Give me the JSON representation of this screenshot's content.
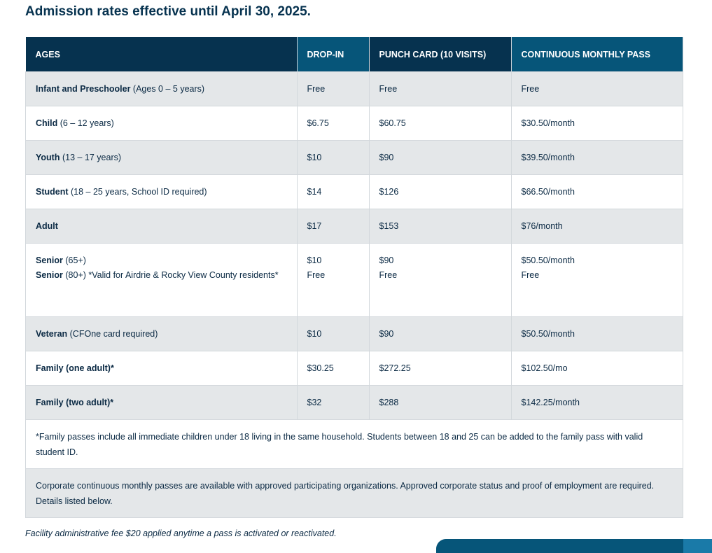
{
  "title": "Admission rates effective until April 30, 2025.",
  "headers": [
    "AGES",
    "DROP-IN",
    "PUNCH CARD (10 VISITS)",
    "CONTINUOUS MONTHLY PASS"
  ],
  "rows": [
    {
      "bold": "Infant and Preschooler",
      "rest": " (Ages 0 – 5 years)",
      "drop": "Free",
      "punch": "Free",
      "monthly": "Free"
    },
    {
      "bold": "Child",
      "rest": " (6 – 12 years)",
      "drop": "$6.75",
      "punch": "$60.75",
      "monthly": "$30.50/month"
    },
    {
      "bold": "Youth",
      "rest": " (13 – 17 years)",
      "drop": "$10",
      "punch": "$90",
      "monthly": "$39.50/month"
    },
    {
      "bold": "Student",
      "rest": " (18 – 25 years, School ID required)",
      "drop": "$14",
      "punch": "$126",
      "monthly": "$66.50/month"
    },
    {
      "bold": "Adult",
      "rest": "",
      "drop": "$17",
      "punch": "$153",
      "monthly": "$76/month"
    },
    {
      "bold": "Senior",
      "rest": " (65+)",
      "bold2": "Senior",
      "rest2": " (80+) *Valid for Airdrie & Rocky View County residents*",
      "drop": "$10",
      "drop2": "Free",
      "punch": "$90",
      "punch2": "Free",
      "monthly": "$50.50/month",
      "monthly2": "Free"
    },
    {
      "bold": "Veteran",
      "rest": " (CFOne card required)",
      "drop": "$10",
      "punch": "$90",
      "monthly": "$50.50/month"
    },
    {
      "bold": "Family (one adult)*",
      "rest": "",
      "drop": "$30.25",
      "punch": "$272.25",
      "monthly": "$102.50/mo"
    },
    {
      "bold": "Family (two adult)*",
      "rest": "",
      "drop": "$32",
      "punch": "$288",
      "monthly": "$142.25/month"
    }
  ],
  "family_note": " *Family passes include all immediate children under 18 living in the same household. Students between 18 and 25 can be added to the family pass with valid student ID.",
  "corporate_note": "Corporate continuous monthly passes are available with approved participating organizations. Approved corporate status and proof of employment are required. Details listed below.",
  "footer": "Facility administrative fee $20 applied anytime a pass is activated or reactivated."
}
